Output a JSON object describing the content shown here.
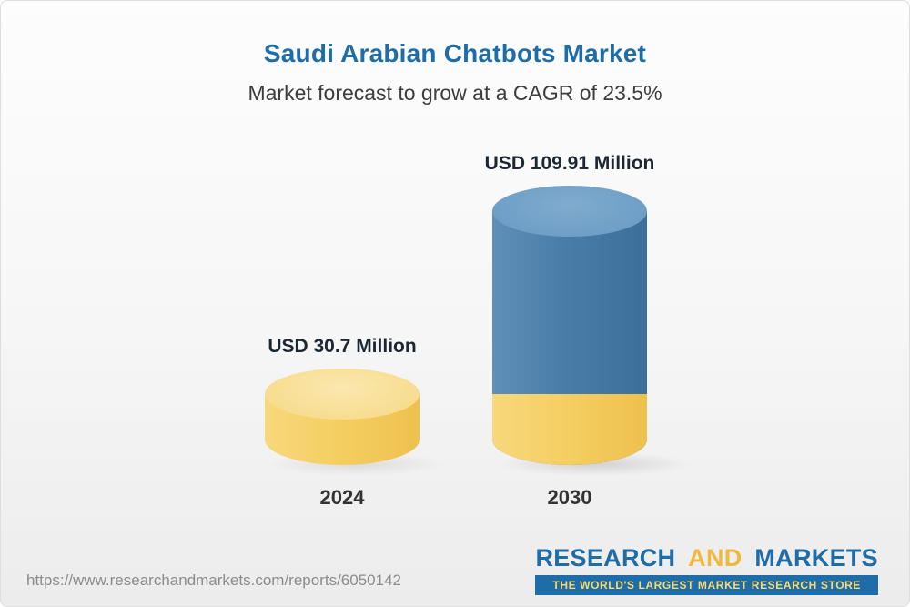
{
  "chart_data": {
    "type": "bar",
    "variant": "3d-cylinder",
    "title": "Saudi Arabian Chatbots Market",
    "subtitle": "Market forecast to grow at a CAGR of 23.5%",
    "cagr_percent": 23.5,
    "unit": "USD Million",
    "categories": [
      "2024",
      "2030"
    ],
    "values": [
      30.7,
      109.91
    ],
    "value_labels": [
      "USD 30.7 Million",
      "USD 109.91 Million"
    ],
    "legend": "none",
    "grid": false,
    "colors": {
      "bar_2024": "#F5CF63",
      "bar_2030": "#4A7DA9",
      "bar_2030_base_segment": "#F5CF63",
      "title_text": "#1E6CA8",
      "value_label_text": "#1C2733"
    }
  },
  "footer": {
    "source_url": "https://www.researchandmarkets.com/reports/6050142",
    "logo": {
      "word1": "RESEARCH",
      "word2": "AND",
      "word3": "MARKETS",
      "tagline": "THE WORLD'S LARGEST MARKET RESEARCH STORE"
    }
  }
}
